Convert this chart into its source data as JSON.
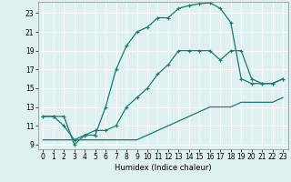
{
  "xlabel": "Humidex (Indice chaleur)",
  "bg_color": "#dff0f0",
  "grid_color": "#ffffff",
  "line_color": "#1a7a6e",
  "xlim": [
    -0.5,
    23.5
  ],
  "ylim": [
    8.5,
    24.2
  ],
  "xticks": [
    0,
    1,
    2,
    3,
    4,
    5,
    6,
    7,
    8,
    9,
    10,
    11,
    12,
    13,
    14,
    15,
    16,
    17,
    18,
    19,
    20,
    21,
    22,
    23
  ],
  "yticks": [
    9,
    11,
    13,
    15,
    17,
    19,
    21,
    23
  ],
  "line1_x": [
    0,
    1,
    2,
    3,
    4,
    5,
    6,
    7,
    8,
    9,
    10,
    11,
    12,
    13,
    14,
    15,
    16,
    17,
    18,
    19,
    20,
    21,
    22,
    23
  ],
  "line1_y": [
    12,
    12,
    12,
    9,
    10,
    10,
    13,
    17,
    19.5,
    21,
    21.5,
    22.5,
    22.5,
    23.5,
    23.8,
    24,
    24.1,
    23.5,
    22,
    16,
    15.5,
    15.5,
    15.5,
    16
  ],
  "line2_x": [
    0,
    1,
    2,
    3,
    4,
    5,
    6,
    7,
    8,
    9,
    10,
    11,
    12,
    13,
    14,
    15,
    16,
    17,
    18,
    19,
    20,
    21,
    22,
    23
  ],
  "line2_y": [
    12,
    12,
    11,
    9.5,
    10,
    10.5,
    10.5,
    11,
    13,
    14,
    15,
    16.5,
    17.5,
    19,
    19,
    19,
    19,
    18,
    19,
    19,
    16,
    15.5,
    15.5,
    16
  ],
  "line3_x": [
    0,
    1,
    2,
    3,
    4,
    5,
    6,
    7,
    8,
    9,
    10,
    11,
    12,
    13,
    14,
    15,
    16,
    17,
    18,
    19,
    20,
    21,
    22,
    23
  ],
  "line3_y": [
    9.5,
    9.5,
    9.5,
    9.5,
    9.5,
    9.5,
    9.5,
    9.5,
    9.5,
    9.5,
    10,
    10.5,
    11,
    11.5,
    12,
    12.5,
    13,
    13,
    13,
    13.5,
    13.5,
    13.5,
    13.5,
    14
  ]
}
